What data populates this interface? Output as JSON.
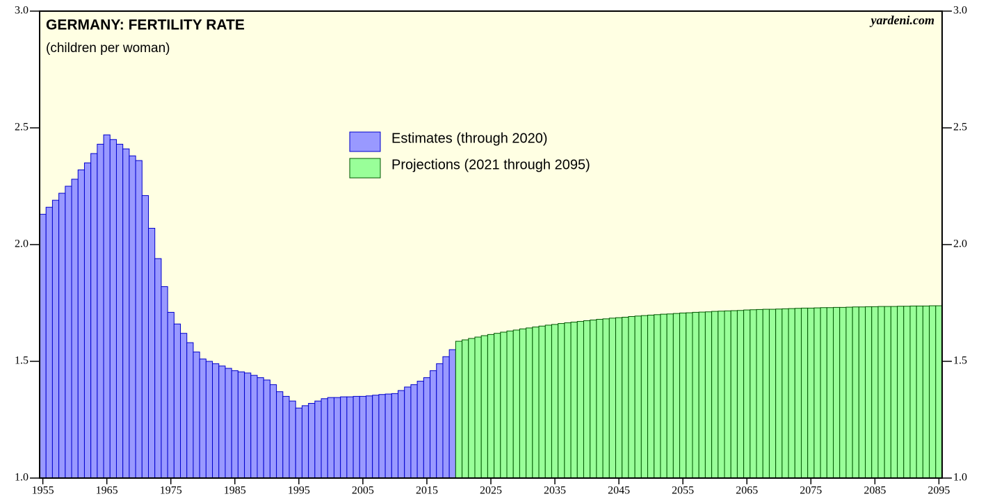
{
  "chart_data": {
    "type": "bar",
    "title": "GERMANY: FERTILITY RATE",
    "subtitle": "(children per woman)",
    "source": "yardeni.com",
    "xlim": [
      1954.5,
      2095.5
    ],
    "xticks": [
      1955,
      1965,
      1975,
      1985,
      1995,
      2005,
      2015,
      2025,
      2035,
      2045,
      2055,
      2065,
      2075,
      2085,
      2095
    ],
    "ylim": [
      1,
      3
    ],
    "yticks": [
      {
        "value": 1,
        "label": "1.0"
      },
      1.5,
      {
        "value": 2,
        "label": "2.0"
      },
      2.5,
      {
        "value": 3,
        "label": "3.0"
      }
    ],
    "series": [
      {
        "name": "Estimates (through 2020)",
        "color": "#9999ff",
        "edge": "#0000cc",
        "x": [
          1955,
          1956,
          1957,
          1958,
          1959,
          1960,
          1961,
          1962,
          1963,
          1964,
          1965,
          1966,
          1967,
          1968,
          1969,
          1970,
          1971,
          1972,
          1973,
          1974,
          1975,
          1976,
          1977,
          1978,
          1979,
          1980,
          1981,
          1982,
          1983,
          1984,
          1985,
          1986,
          1987,
          1988,
          1989,
          1990,
          1991,
          1992,
          1993,
          1994,
          1995,
          1996,
          1997,
          1998,
          1999,
          2000,
          2001,
          2002,
          2003,
          2004,
          2005,
          2006,
          2007,
          2008,
          2009,
          2010,
          2011,
          2012,
          2013,
          2014,
          2015,
          2016,
          2017,
          2018,
          2019
        ],
        "values": [
          2.13,
          2.16,
          2.19,
          2.22,
          2.25,
          2.28,
          2.32,
          2.35,
          2.39,
          2.43,
          2.47,
          2.45,
          2.43,
          2.41,
          2.38,
          2.36,
          2.21,
          2.07,
          1.94,
          1.82,
          1.71,
          1.66,
          1.62,
          1.58,
          1.54,
          1.51,
          1.5,
          1.49,
          1.48,
          1.47,
          1.46,
          1.455,
          1.45,
          1.44,
          1.43,
          1.42,
          1.4,
          1.37,
          1.35,
          1.33,
          1.3,
          1.31,
          1.32,
          1.33,
          1.34,
          1.345,
          1.345,
          1.348,
          1.348,
          1.35,
          1.35,
          1.352,
          1.355,
          1.358,
          1.36,
          1.362,
          1.375,
          1.39,
          1.4,
          1.415,
          1.43,
          1.46,
          1.49,
          1.52,
          1.55
        ]
      },
      {
        "name": "Projections (2021 through 2095)",
        "color": "#99ff99",
        "edge": "#005500",
        "x": [
          2020,
          2021,
          2022,
          2023,
          2024,
          2025,
          2026,
          2027,
          2028,
          2029,
          2030,
          2031,
          2032,
          2033,
          2034,
          2035,
          2036,
          2037,
          2038,
          2039,
          2040,
          2041,
          2042,
          2043,
          2044,
          2045,
          2046,
          2047,
          2048,
          2049,
          2050,
          2051,
          2052,
          2053,
          2054,
          2055,
          2056,
          2057,
          2058,
          2059,
          2060,
          2061,
          2062,
          2063,
          2064,
          2065,
          2066,
          2067,
          2068,
          2069,
          2070,
          2071,
          2072,
          2073,
          2074,
          2075,
          2076,
          2077,
          2078,
          2079,
          2080,
          2081,
          2082,
          2083,
          2084,
          2085,
          2086,
          2087,
          2088,
          2089,
          2090,
          2091,
          2092,
          2093,
          2094,
          2095
        ],
        "values": [
          1.586,
          1.592,
          1.598,
          1.604,
          1.61,
          1.615,
          1.62,
          1.625,
          1.63,
          1.634,
          1.639,
          1.643,
          1.647,
          1.651,
          1.655,
          1.658,
          1.662,
          1.665,
          1.668,
          1.671,
          1.674,
          1.677,
          1.68,
          1.682,
          1.685,
          1.687,
          1.689,
          1.692,
          1.694,
          1.696,
          1.698,
          1.7,
          1.702,
          1.703,
          1.705,
          1.707,
          1.708,
          1.71,
          1.711,
          1.712,
          1.714,
          1.715,
          1.716,
          1.717,
          1.718,
          1.72,
          1.721,
          1.722,
          1.723,
          1.723,
          1.724,
          1.725,
          1.726,
          1.727,
          1.728,
          1.728,
          1.729,
          1.73,
          1.73,
          1.731,
          1.731,
          1.732,
          1.733,
          1.733,
          1.734,
          1.734,
          1.735,
          1.735,
          1.735,
          1.736,
          1.736,
          1.737,
          1.737,
          1.737,
          1.738,
          1.738
        ]
      }
    ]
  }
}
